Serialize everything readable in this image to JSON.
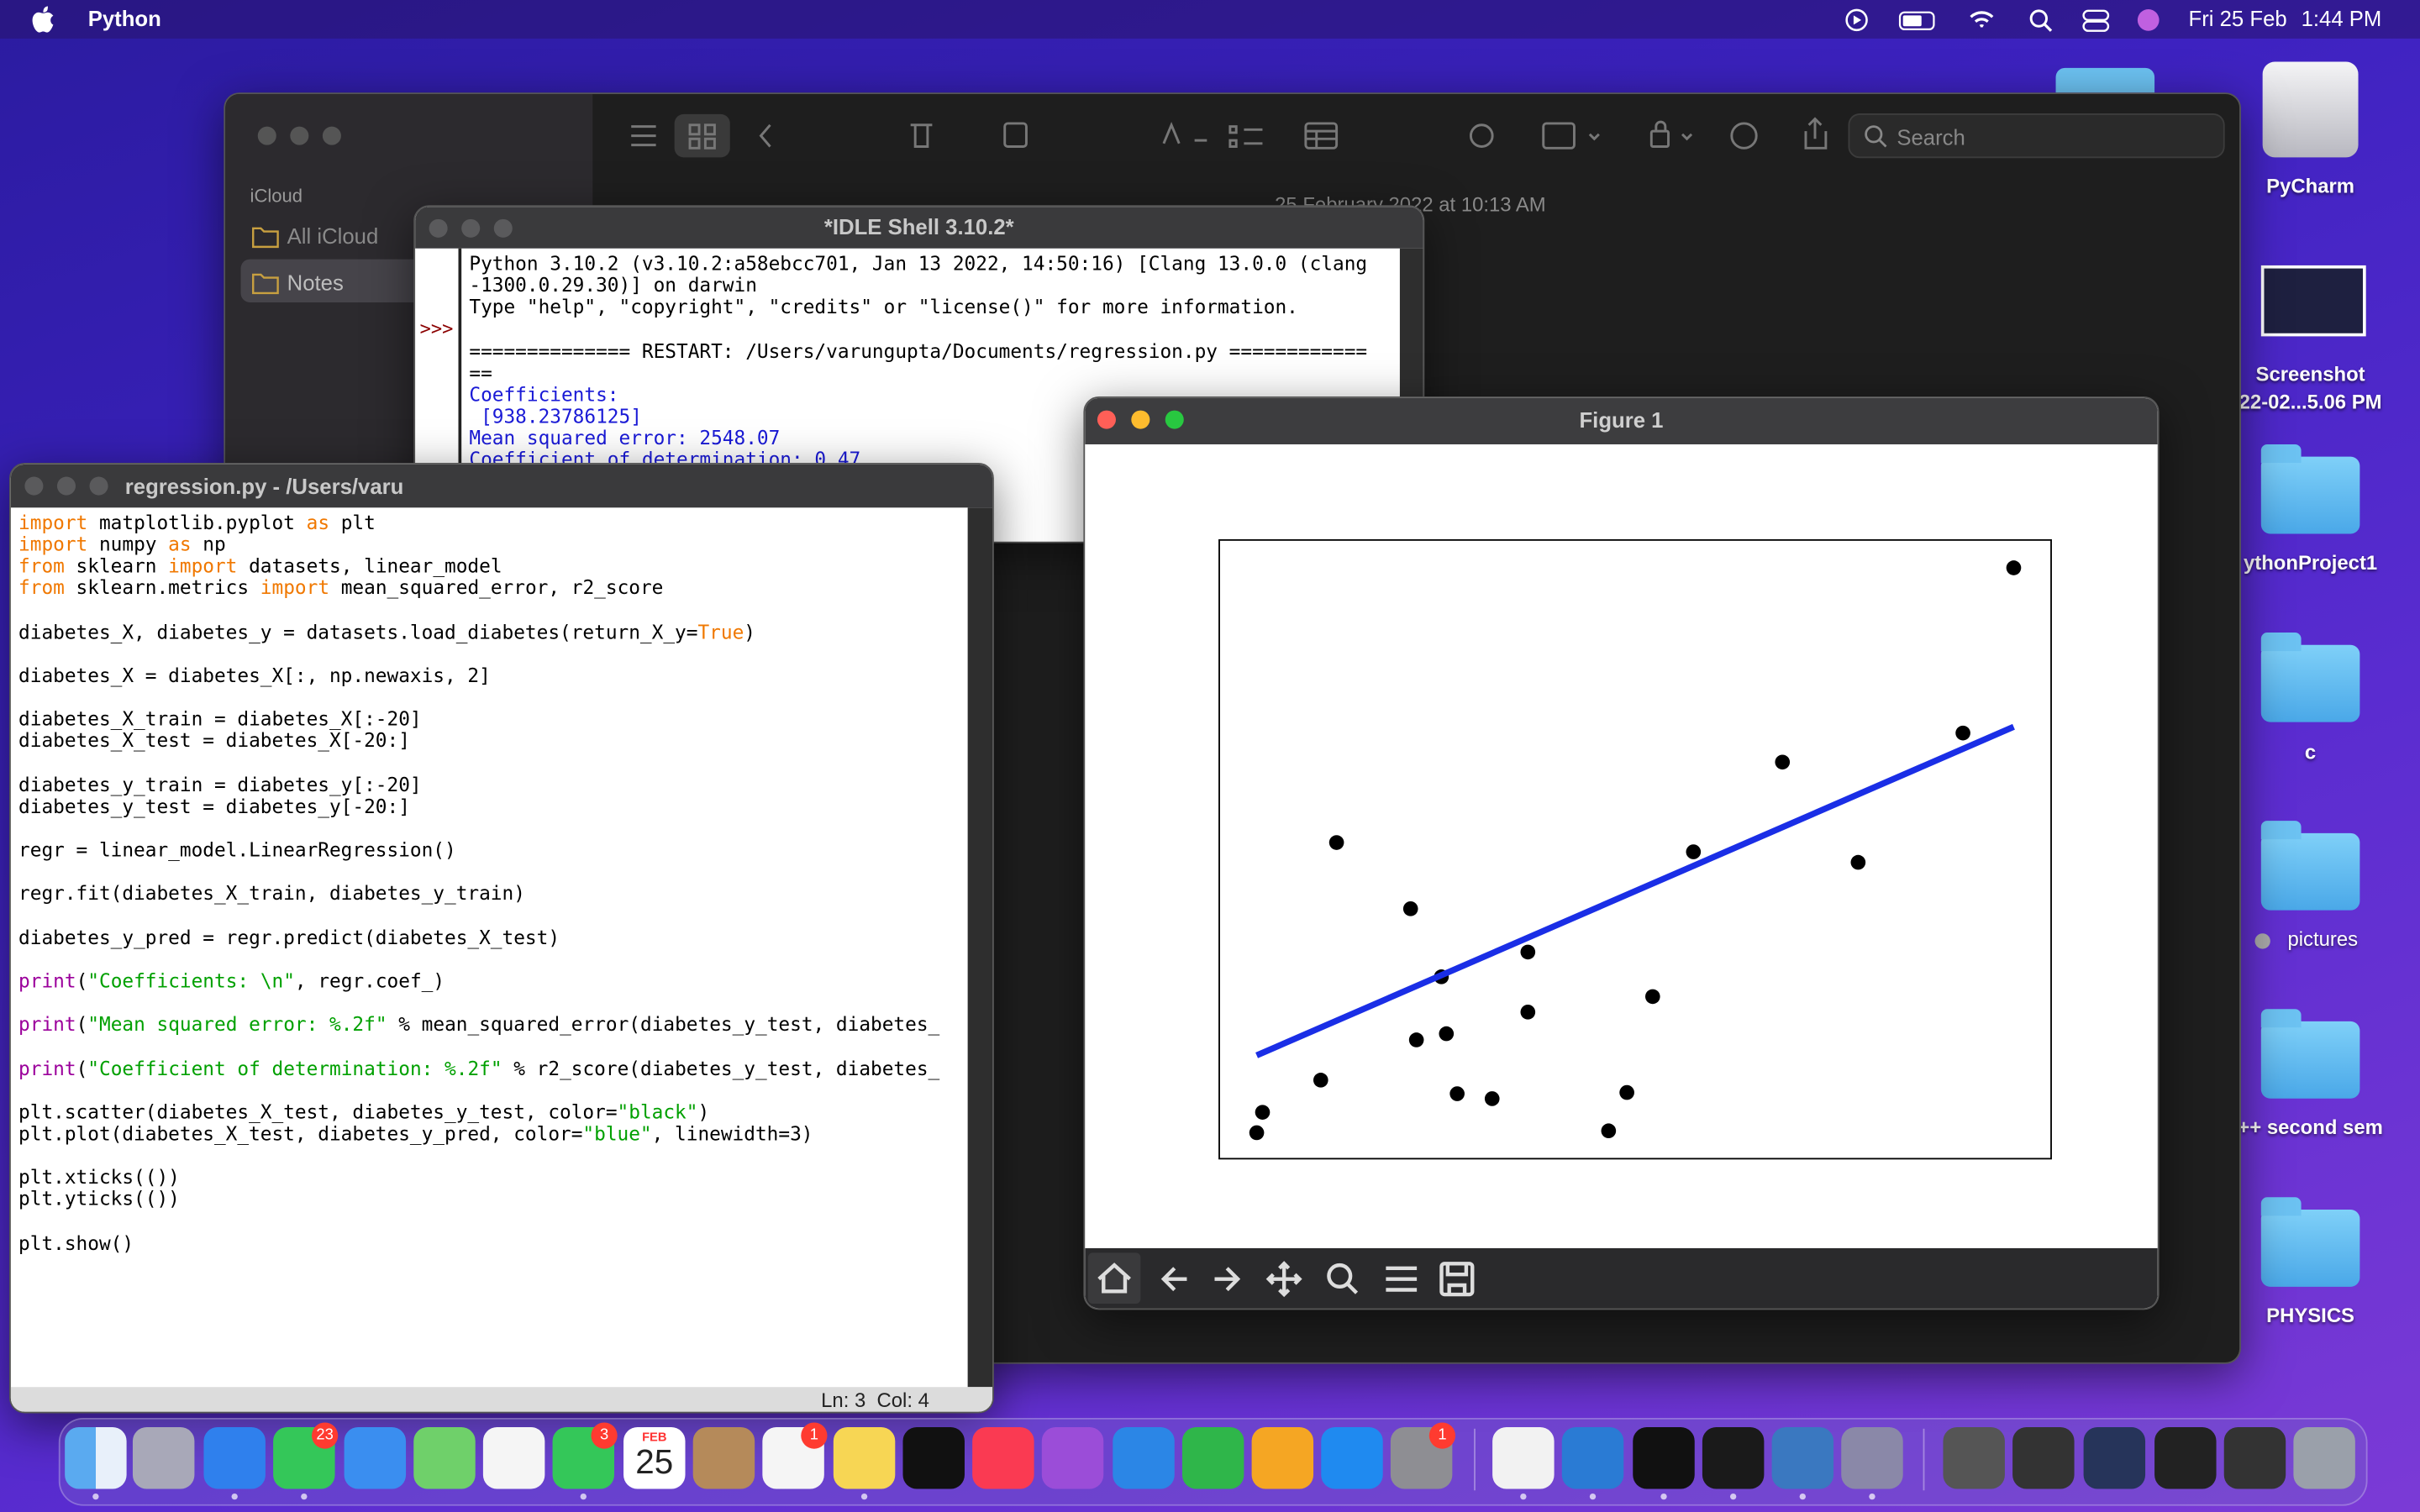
{
  "menubar": {
    "app": "Python",
    "date": "Fri 25 Feb",
    "time": "1:44 PM"
  },
  "notes": {
    "sidebar_heading": "iCloud",
    "folders": [
      "All iCloud",
      "Notes"
    ],
    "search_placeholder": "Search",
    "note_date": "25 February 2022 at 10:13 AM"
  },
  "shell": {
    "title": "*IDLE Shell 3.10.2*",
    "prompt": ">>>",
    "lines": [
      "Python 3.10.2 (v3.10.2:a58ebcc701, Jan 13 2022, 14:50:16) [Clang 13.0.0 (clang",
      "-1300.0.29.30)] on darwin",
      "Type \"help\", \"copyright\", \"credits\" or \"license()\" for more information.",
      null,
      "============== RESTART: /Users/varungupta/Documents/regression.py ============",
      "=="
    ],
    "output": [
      "Coefficients:",
      " [938.23786125]",
      "Mean squared error: 2548.07",
      "Coefficient of determination: 0.47"
    ]
  },
  "editor": {
    "title": "regression.py - /Users/varu",
    "status": "Ln: 3  Col: 4",
    "code": [
      [
        {
          "kw": "import"
        },
        {
          "t": " matplotlib.pyplot "
        },
        {
          "kw": "as"
        },
        {
          "t": " plt"
        }
      ],
      [
        {
          "kw": "import"
        },
        {
          "t": " numpy "
        },
        {
          "kw": "as"
        },
        {
          "t": " np"
        }
      ],
      [
        {
          "kw": "from"
        },
        {
          "t": " sklearn "
        },
        {
          "kw": "import"
        },
        {
          "t": " datasets, linear_model"
        }
      ],
      [
        {
          "kw": "from"
        },
        {
          "t": " sklearn.metrics "
        },
        {
          "kw": "import"
        },
        {
          "t": " mean_squared_error, r2_score"
        }
      ],
      null,
      [
        {
          "t": "diabetes_X, diabetes_y = datasets.load_diabetes(return_X_y="
        },
        {
          "kw": "True"
        },
        {
          "t": ")"
        }
      ],
      null,
      [
        {
          "t": "diabetes_X = diabetes_X[:, np.newaxis, 2]"
        }
      ],
      null,
      [
        {
          "t": "diabetes_X_train = diabetes_X[:-20]"
        }
      ],
      [
        {
          "t": "diabetes_X_test = diabetes_X[-20:]"
        }
      ],
      null,
      [
        {
          "t": "diabetes_y_train = diabetes_y[:-20]"
        }
      ],
      [
        {
          "t": "diabetes_y_test = diabetes_y[-20:]"
        }
      ],
      null,
      [
        {
          "t": "regr = linear_model.LinearRegression()"
        }
      ],
      null,
      [
        {
          "t": "regr.fit(diabetes_X_train, diabetes_y_train)"
        }
      ],
      null,
      [
        {
          "t": "diabetes_y_pred = regr.predict(diabetes_X_test)"
        }
      ],
      null,
      [
        {
          "bi": "print"
        },
        {
          "t": "("
        },
        {
          "str": "\"Coefficients: \\n\""
        },
        {
          "t": ", regr.coef_)"
        }
      ],
      null,
      [
        {
          "bi": "print"
        },
        {
          "t": "("
        },
        {
          "str": "\"Mean squared error: %.2f\""
        },
        {
          "t": " % mean_squared_error(diabetes_y_test, diabetes_"
        }
      ],
      null,
      [
        {
          "bi": "print"
        },
        {
          "t": "("
        },
        {
          "str": "\"Coefficient of determination: %.2f\""
        },
        {
          "t": " % r2_score(diabetes_y_test, diabetes_"
        }
      ],
      null,
      [
        {
          "t": "plt.scatter(diabetes_X_test, diabetes_y_test, color="
        },
        {
          "str": "\"black\""
        },
        {
          "t": ")"
        }
      ],
      [
        {
          "t": "plt.plot(diabetes_X_test, diabetes_y_pred, color="
        },
        {
          "str": "\"blue\""
        },
        {
          "t": ", linewidth=3)"
        }
      ],
      null,
      [
        {
          "t": "plt.xticks(())"
        }
      ],
      [
        {
          "t": "plt.yticks(())"
        }
      ],
      null,
      [
        {
          "t": "plt.show()"
        }
      ]
    ]
  },
  "figure": {
    "title": "Figure 1"
  },
  "chart_data": {
    "type": "scatter",
    "xlim": [
      0,
      100
    ],
    "ylim": [
      0,
      100
    ],
    "points": {
      "color": "#000000",
      "x": [
        14.1,
        23.0,
        26.7,
        37.1,
        37.1,
        23.7,
        27.3,
        12.2,
        5.2,
        4.5,
        28.6,
        32.8,
        46.8,
        49.0,
        52.1,
        57.0,
        67.7,
        76.8,
        89.4,
        95.5
      ],
      "values": [
        51.1,
        40.4,
        29.4,
        33.4,
        23.7,
        19.2,
        20.2,
        12.7,
        7.5,
        4.2,
        10.5,
        9.7,
        4.5,
        10.7,
        26.2,
        49.6,
        64.1,
        47.9,
        68.8,
        95.5
      ]
    },
    "fit_line": {
      "color": "#1a2ee6",
      "x": [
        4.5,
        95.5
      ],
      "values": [
        16.7,
        69.8
      ]
    }
  },
  "desktop_icons": [
    "PyCharm",
    "Screenshot",
    "22-02...5.06 PM",
    "ythonProject1",
    "c",
    "pictures",
    "++ second sem",
    "PHYSICS"
  ],
  "dock": {
    "calendar_month": "FEB",
    "calendar_day": "25",
    "badges": [
      "23",
      "3",
      "1",
      "1"
    ]
  }
}
